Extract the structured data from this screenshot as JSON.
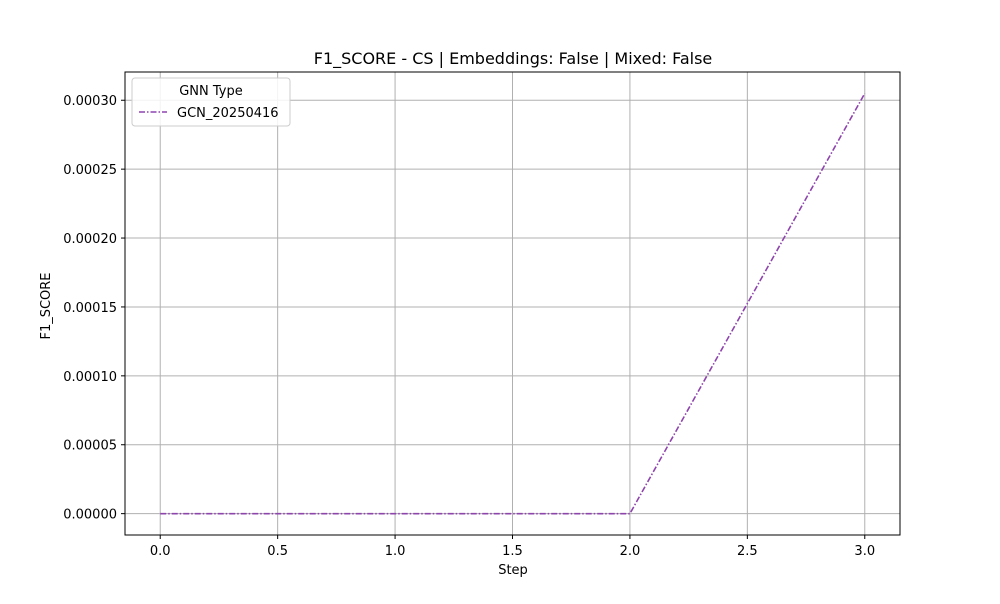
{
  "chart_data": {
    "type": "line",
    "title": "F1_SCORE - CS | Embeddings: False | Mixed: False",
    "xlabel": "Step",
    "ylabel": "F1_SCORE",
    "xlim": [
      -0.15,
      3.15
    ],
    "ylim": [
      -1.55e-05,
      0.0003205
    ],
    "x_ticks": [
      0.0,
      0.5,
      1.0,
      1.5,
      2.0,
      2.5,
      3.0
    ],
    "x_tick_labels": [
      "0.0",
      "0.5",
      "1.0",
      "1.5",
      "2.0",
      "2.5",
      "3.0"
    ],
    "y_ticks": [
      0.0,
      5e-05,
      0.0001,
      0.00015,
      0.0002,
      0.00025,
      0.0003
    ],
    "y_tick_labels": [
      "0.00000",
      "0.00005",
      "0.00010",
      "0.00015",
      "0.00020",
      "0.00025",
      "0.00030"
    ],
    "grid": true,
    "legend": {
      "title": "GNN Type",
      "placement": "top-left"
    },
    "series": [
      {
        "name": "GCN_20250416",
        "color": "#8e44ad",
        "line_style": "dash-dot",
        "x": [
          0,
          1,
          2,
          3
        ],
        "y": [
          0.0,
          0.0,
          0.0,
          0.000305
        ]
      }
    ]
  }
}
